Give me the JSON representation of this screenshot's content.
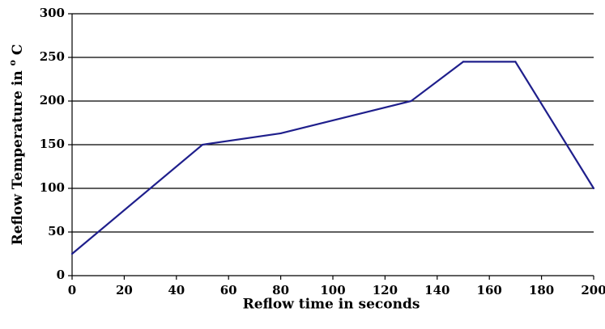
{
  "chart_data": {
    "type": "line",
    "title": "",
    "xlabel": "Reflow time in seconds",
    "ylabel_prefix": "Reflow Temperature in ",
    "ylabel_superscript": "o",
    "ylabel_suffix": "C",
    "xlim": [
      0,
      200
    ],
    "ylim": [
      0,
      300
    ],
    "x_ticks": [
      0,
      20,
      40,
      60,
      80,
      100,
      120,
      140,
      160,
      180,
      200
    ],
    "y_ticks": [
      0,
      50,
      100,
      150,
      200,
      250,
      300
    ],
    "grid": "horizontal",
    "legend": "none",
    "colors": {
      "series": "#1f1f8c",
      "grid": "#000000",
      "axis": "#000000"
    },
    "series": [
      {
        "x": [
          0,
          50,
          80,
          130,
          150,
          170,
          200
        ],
        "y": [
          25,
          150,
          163,
          200,
          245,
          245,
          100
        ]
      }
    ]
  }
}
